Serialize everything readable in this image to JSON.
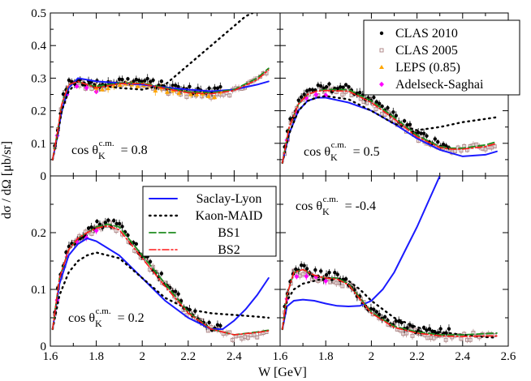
{
  "figure": {
    "xlabel": "W [GeV]",
    "ylabel": "dσ / dΩ  [μb/sr]",
    "colors": {
      "saclay": "#1a1aff",
      "maid": "#000000",
      "bs1": "#1e8c1e",
      "bs2": "#ff1a1a",
      "clas2010": "#000000",
      "clas2005": "#b08a8a",
      "leps": "#ffa500",
      "adelseck": "#ff00ff"
    },
    "data_legend": [
      {
        "key": "clas2010",
        "label": "CLAS 2010",
        "marker": "circle"
      },
      {
        "key": "clas2005",
        "label": "CLAS 2005",
        "marker": "square-open"
      },
      {
        "key": "leps",
        "label": "LEPS (0.85)",
        "marker": "triangle"
      },
      {
        "key": "adelseck",
        "label": "Adelseck-Saghai",
        "marker": "diamond"
      }
    ],
    "model_legend": [
      {
        "key": "saclay",
        "label": "Saclay-Lyon",
        "dash": "solid"
      },
      {
        "key": "maid",
        "label": "Kaon-MAID",
        "dash": "dotted"
      },
      {
        "key": "bs1",
        "label": "BS1",
        "dash": "dashed"
      },
      {
        "key": "bs2",
        "label": "BS2",
        "dash": "dashdot"
      }
    ]
  },
  "chart_data": [
    {
      "type": "line",
      "panel": "top-left",
      "annotation": {
        "prefix": "cos θ",
        "sub": "K",
        "sup": "c.m.",
        "value": "= 0.8"
      },
      "xlim": [
        1.6,
        2.6
      ],
      "ylim": [
        0,
        0.5
      ],
      "yticks": [
        "0",
        "0.1",
        "0.2",
        "0.3",
        "0.4",
        "0.5"
      ],
      "xticks": [],
      "series": [
        {
          "name": "Saclay-Lyon",
          "x": [
            1.61,
            1.63,
            1.65,
            1.68,
            1.72,
            1.76,
            1.8,
            1.9,
            2.0,
            2.1,
            2.2,
            2.3,
            2.4,
            2.5,
            2.55
          ],
          "y": [
            0.05,
            0.12,
            0.2,
            0.27,
            0.3,
            0.295,
            0.29,
            0.285,
            0.28,
            0.272,
            0.265,
            0.26,
            0.265,
            0.28,
            0.29
          ]
        },
        {
          "name": "Kaon-MAID",
          "x": [
            1.61,
            1.63,
            1.65,
            1.68,
            1.72,
            1.76,
            1.8,
            1.9,
            2.0,
            2.1,
            2.15,
            2.2,
            2.25,
            2.3,
            2.35,
            2.4,
            2.45,
            2.48
          ],
          "y": [
            0.05,
            0.12,
            0.2,
            0.26,
            0.29,
            0.285,
            0.28,
            0.27,
            0.265,
            0.28,
            0.31,
            0.34,
            0.37,
            0.4,
            0.43,
            0.46,
            0.49,
            0.5
          ]
        },
        {
          "name": "BS1",
          "x": [
            1.61,
            1.63,
            1.65,
            1.68,
            1.72,
            1.76,
            1.8,
            1.9,
            2.0,
            2.1,
            2.2,
            2.3,
            2.4,
            2.5,
            2.55
          ],
          "y": [
            0.05,
            0.13,
            0.22,
            0.28,
            0.29,
            0.28,
            0.275,
            0.285,
            0.285,
            0.27,
            0.258,
            0.255,
            0.265,
            0.3,
            0.33
          ]
        },
        {
          "name": "BS2",
          "x": [
            1.61,
            1.63,
            1.65,
            1.68,
            1.72,
            1.76,
            1.8,
            1.9,
            2.0,
            2.1,
            2.2,
            2.3,
            2.4,
            2.5,
            2.55
          ],
          "y": [
            0.05,
            0.13,
            0.22,
            0.28,
            0.29,
            0.28,
            0.27,
            0.283,
            0.283,
            0.268,
            0.255,
            0.252,
            0.262,
            0.295,
            0.325
          ]
        }
      ]
    },
    {
      "type": "line",
      "panel": "top-right",
      "annotation": {
        "prefix": "cos θ",
        "sub": "K",
        "sup": "c.m.",
        "value": "= 0.5"
      },
      "xlim": [
        1.6,
        2.6
      ],
      "ylim": [
        0,
        0.5
      ],
      "yticks": [],
      "xticks": [],
      "series": [
        {
          "name": "Saclay-Lyon",
          "x": [
            1.61,
            1.64,
            1.68,
            1.72,
            1.76,
            1.8,
            1.9,
            2.0,
            2.1,
            2.2,
            2.3,
            2.4,
            2.5,
            2.55
          ],
          "y": [
            0.04,
            0.13,
            0.2,
            0.23,
            0.24,
            0.24,
            0.225,
            0.2,
            0.16,
            0.115,
            0.08,
            0.06,
            0.065,
            0.075
          ]
        },
        {
          "name": "Kaon-MAID",
          "x": [
            1.61,
            1.64,
            1.68,
            1.72,
            1.76,
            1.8,
            1.9,
            2.0,
            2.1,
            2.2,
            2.3,
            2.4,
            2.5,
            2.55
          ],
          "y": [
            0.04,
            0.13,
            0.2,
            0.23,
            0.24,
            0.245,
            0.235,
            0.2,
            0.16,
            0.14,
            0.15,
            0.165,
            0.175,
            0.18
          ]
        },
        {
          "name": "BS1",
          "x": [
            1.61,
            1.64,
            1.68,
            1.72,
            1.76,
            1.8,
            1.9,
            2.0,
            2.1,
            2.2,
            2.3,
            2.35,
            2.4,
            2.5,
            2.55
          ],
          "y": [
            0.04,
            0.15,
            0.22,
            0.25,
            0.26,
            0.265,
            0.265,
            0.23,
            0.18,
            0.125,
            0.09,
            0.085,
            0.085,
            0.095,
            0.105
          ]
        },
        {
          "name": "BS2",
          "x": [
            1.61,
            1.64,
            1.68,
            1.72,
            1.76,
            1.8,
            1.9,
            2.0,
            2.1,
            2.2,
            2.3,
            2.35,
            2.4,
            2.5,
            2.55
          ],
          "y": [
            0.04,
            0.15,
            0.22,
            0.25,
            0.26,
            0.262,
            0.26,
            0.225,
            0.175,
            0.12,
            0.087,
            0.082,
            0.082,
            0.09,
            0.1
          ]
        }
      ]
    },
    {
      "type": "line",
      "panel": "bottom-left",
      "annotation": {
        "prefix": "cos θ",
        "sub": "K",
        "sup": "c.m.",
        "value": "= 0.2"
      },
      "xlim": [
        1.6,
        2.6
      ],
      "ylim": [
        0,
        0.3
      ],
      "yticks": [
        "0",
        "0.1",
        "0.2"
      ],
      "xticks": [
        "1.6",
        "1.8",
        "2",
        "2.2",
        "2.4"
      ],
      "series": [
        {
          "name": "Saclay-Lyon",
          "x": [
            1.61,
            1.64,
            1.68,
            1.72,
            1.76,
            1.8,
            1.9,
            2.0,
            2.1,
            2.2,
            2.3,
            2.35,
            2.4,
            2.45,
            2.5,
            2.55
          ],
          "y": [
            0.03,
            0.11,
            0.16,
            0.18,
            0.19,
            0.185,
            0.16,
            0.12,
            0.08,
            0.05,
            0.03,
            0.03,
            0.045,
            0.065,
            0.09,
            0.12
          ]
        },
        {
          "name": "Kaon-MAID",
          "x": [
            1.61,
            1.64,
            1.68,
            1.72,
            1.76,
            1.8,
            1.9,
            2.0,
            2.1,
            2.2,
            2.3,
            2.4,
            2.5,
            2.55
          ],
          "y": [
            0.03,
            0.09,
            0.13,
            0.15,
            0.16,
            0.165,
            0.155,
            0.12,
            0.085,
            0.065,
            0.058,
            0.055,
            0.052,
            0.05
          ]
        },
        {
          "name": "BS1",
          "x": [
            1.61,
            1.64,
            1.68,
            1.72,
            1.76,
            1.8,
            1.85,
            1.9,
            2.0,
            2.1,
            2.2,
            2.3,
            2.4,
            2.5,
            2.55
          ],
          "y": [
            0.03,
            0.12,
            0.17,
            0.19,
            0.2,
            0.21,
            0.215,
            0.21,
            0.16,
            0.11,
            0.06,
            0.03,
            0.02,
            0.025,
            0.028
          ]
        },
        {
          "name": "BS2",
          "x": [
            1.61,
            1.64,
            1.68,
            1.72,
            1.76,
            1.8,
            1.85,
            1.9,
            2.0,
            2.1,
            2.2,
            2.3,
            2.4,
            2.5,
            2.55
          ],
          "y": [
            0.03,
            0.12,
            0.17,
            0.19,
            0.2,
            0.208,
            0.212,
            0.205,
            0.155,
            0.105,
            0.058,
            0.03,
            0.02,
            0.024,
            0.027
          ]
        }
      ]
    },
    {
      "type": "line",
      "panel": "bottom-right",
      "annotation": {
        "prefix": "cos θ",
        "sub": "K",
        "sup": "c.m.",
        "value": "= -0.4"
      },
      "xlim": [
        1.6,
        2.6
      ],
      "ylim": [
        0,
        0.3
      ],
      "yticks": [],
      "xticks": [
        "1.6",
        "1.8",
        "2",
        "2.2",
        "2.4",
        "2.6"
      ],
      "series": [
        {
          "name": "Saclay-Lyon",
          "x": [
            1.61,
            1.63,
            1.66,
            1.7,
            1.75,
            1.8,
            1.85,
            1.9,
            1.95,
            2.0,
            2.05,
            2.1,
            2.15,
            2.2,
            2.25,
            2.3,
            2.32
          ],
          "y": [
            0.03,
            0.07,
            0.08,
            0.082,
            0.08,
            0.075,
            0.071,
            0.07,
            0.071,
            0.08,
            0.1,
            0.13,
            0.17,
            0.21,
            0.255,
            0.3,
            0.32
          ]
        },
        {
          "name": "Kaon-MAID",
          "x": [
            1.61,
            1.63,
            1.66,
            1.7,
            1.75,
            1.8,
            1.85,
            1.9,
            1.95,
            2.0,
            2.1,
            2.2,
            2.3,
            2.4,
            2.5,
            2.55
          ],
          "y": [
            0.03,
            0.08,
            0.1,
            0.11,
            0.115,
            0.12,
            0.12,
            0.115,
            0.1,
            0.08,
            0.05,
            0.033,
            0.025,
            0.02,
            0.016,
            0.015
          ]
        },
        {
          "name": "BS1",
          "x": [
            1.61,
            1.63,
            1.66,
            1.7,
            1.75,
            1.8,
            1.85,
            1.9,
            1.95,
            2.0,
            2.1,
            2.2,
            2.3,
            2.4,
            2.5,
            2.55
          ],
          "y": [
            0.03,
            0.09,
            0.13,
            0.135,
            0.125,
            0.12,
            0.12,
            0.11,
            0.085,
            0.06,
            0.035,
            0.025,
            0.02,
            0.02,
            0.022,
            0.023
          ]
        },
        {
          "name": "BS2",
          "x": [
            1.61,
            1.63,
            1.66,
            1.7,
            1.75,
            1.8,
            1.85,
            1.9,
            1.95,
            2.0,
            2.1,
            2.2,
            2.3,
            2.4,
            2.5,
            2.55
          ],
          "y": [
            0.03,
            0.09,
            0.13,
            0.135,
            0.125,
            0.12,
            0.118,
            0.108,
            0.083,
            0.058,
            0.033,
            0.023,
            0.018,
            0.017,
            0.018,
            0.018
          ]
        }
      ]
    }
  ]
}
